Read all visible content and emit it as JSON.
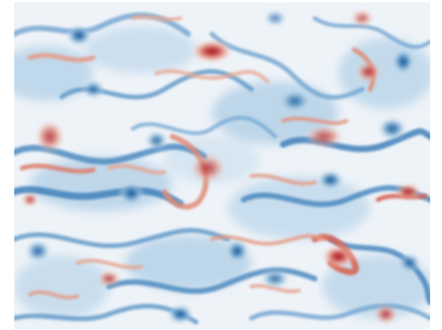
{
  "image": {
    "kind": "vorticity-field-render",
    "colormap": {
      "negative": "#2166ac",
      "neutral": "#f7f7f7",
      "positive": "#b2182b"
    }
  }
}
